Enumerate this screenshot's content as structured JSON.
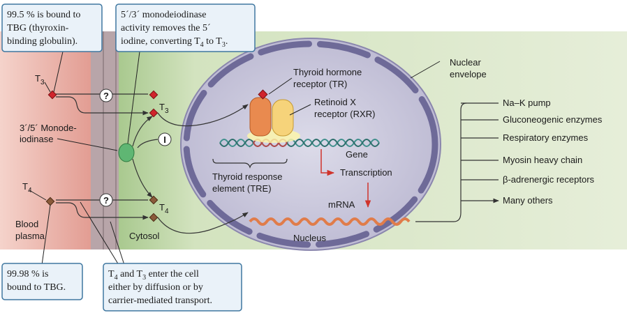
{
  "callouts": [
    {
      "lines": [
        "99.5 % is bound to",
        "TBG (thyroxin-",
        "binding globulin)."
      ]
    },
    {
      "lines": [
        "5´/3´ monodeiodinase",
        "activity removes the 5´",
        [
          "iodine, converting T",
          "4",
          " to T",
          "3",
          "."
        ]
      ]
    },
    {
      "lines": [
        "99.98 % is",
        "bound to TBG."
      ]
    },
    {
      "lines": [
        [
          "T",
          "4",
          " and T",
          "3",
          " enter the cell"
        ],
        "either by diffusion or by",
        "carrier-mediated transport."
      ]
    }
  ],
  "labels": {
    "t3_plasma": [
      "T",
      "3"
    ],
    "t3_cytosol": [
      "T",
      "3"
    ],
    "t4_plasma": [
      "T",
      "4"
    ],
    "t4_cytosol": [
      "T",
      "4"
    ],
    "question_1": "?",
    "question_2": "?",
    "inhibitor": "I",
    "monodeiodinase": [
      "3´/5´ Monode-",
      "iodinase"
    ],
    "blood_plasma": [
      "Blood",
      "plasma"
    ],
    "cytosol": "Cytosol",
    "tr": [
      "Thyroid hormone",
      "receptor (TR)"
    ],
    "rxr": [
      "Retinoid X",
      "receptor (RXR)"
    ],
    "gene": "Gene",
    "transcription": "Transcription",
    "tre": [
      "Thyroid response",
      "element (TRE)"
    ],
    "mrna": "mRNA",
    "nucleus": "Nucleus",
    "nuclear_envelope": [
      "Nuclear",
      "envelope"
    ]
  },
  "targets": [
    "Na–K pump",
    "Gluconeogenic enzymes",
    "Respiratory enzymes",
    "Myosin heavy chain",
    "β-adrenergic receptors",
    "Many others"
  ]
}
